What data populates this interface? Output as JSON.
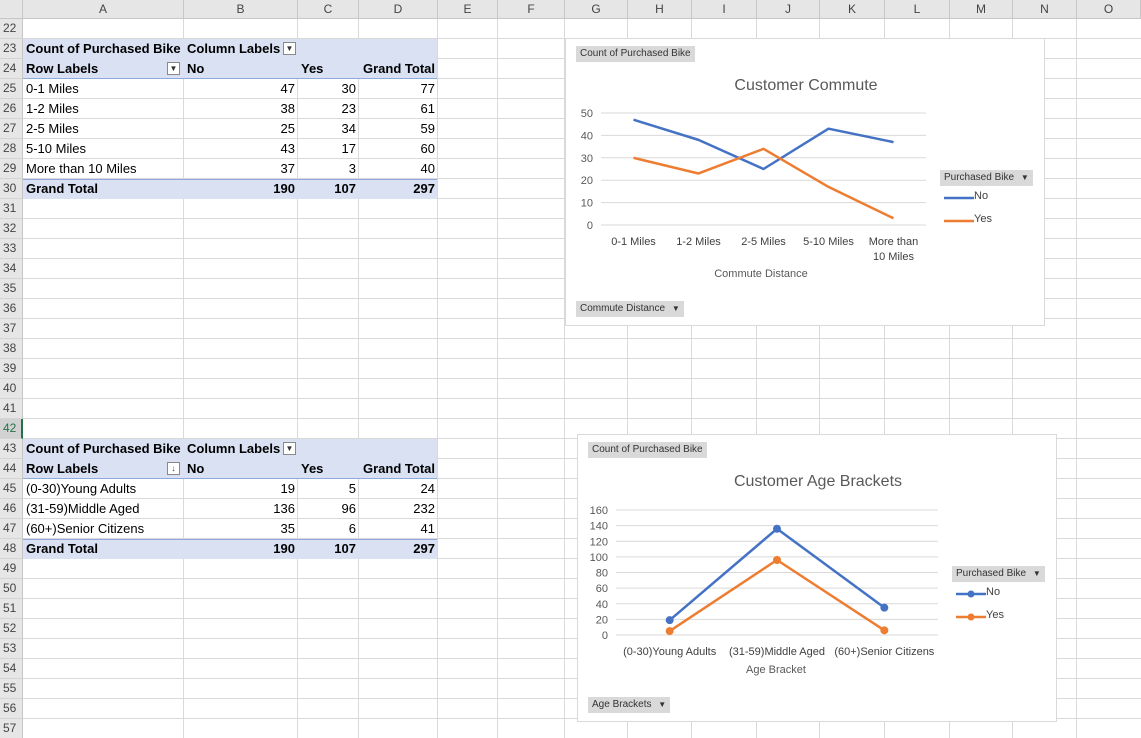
{
  "columns": [
    "A",
    "B",
    "C",
    "D",
    "E",
    "F",
    "G",
    "H",
    "I",
    "J",
    "K",
    "L",
    "M",
    "N",
    "O"
  ],
  "rows": [
    "22",
    "23",
    "24",
    "25",
    "26",
    "27",
    "28",
    "29",
    "30",
    "31",
    "32",
    "33",
    "34",
    "35",
    "36",
    "37",
    "38",
    "39",
    "40",
    "41",
    "42",
    "43",
    "44",
    "45",
    "46",
    "47",
    "48",
    "49",
    "50",
    "51",
    "52",
    "53",
    "54",
    "55",
    "56",
    "57"
  ],
  "active_row": "42",
  "pivot1": {
    "title": "Count of Purchased Bike",
    "col_labels": "Column Labels",
    "row_labels": "Row Labels",
    "headers": [
      "No",
      "Yes",
      "Grand Total"
    ],
    "rows": [
      {
        "label": "0-1 Miles",
        "no": "47",
        "yes": "30",
        "total": "77"
      },
      {
        "label": "1-2 Miles",
        "no": "38",
        "yes": "23",
        "total": "61"
      },
      {
        "label": "2-5 Miles",
        "no": "25",
        "yes": "34",
        "total": "59"
      },
      {
        "label": "5-10 Miles",
        "no": "43",
        "yes": "17",
        "total": "60"
      },
      {
        "label": "More than 10 Miles",
        "no": "37",
        "yes": "3",
        "total": "40"
      }
    ],
    "grand": {
      "label": "Grand Total",
      "no": "190",
      "yes": "107",
      "total": "297"
    }
  },
  "pivot2": {
    "title": "Count of Purchased Bike",
    "col_labels": "Column Labels",
    "row_labels": "Row Labels",
    "headers": [
      "No",
      "Yes",
      "Grand Total"
    ],
    "rows": [
      {
        "label": "(0-30)Young Adults",
        "no": "19",
        "yes": "5",
        "total": "24"
      },
      {
        "label": "(31-59)Middle Aged",
        "no": "136",
        "yes": "96",
        "total": "232"
      },
      {
        "label": "(60+)Senior Citizens",
        "no": "35",
        "yes": "6",
        "total": "41"
      }
    ],
    "grand": {
      "label": "Grand Total",
      "no": "190",
      "yes": "107",
      "total": "297"
    }
  },
  "chart1": {
    "value_button": "Count of Purchased Bike",
    "axis_button": "Commute Distance",
    "legend_button": "Purchased Bike",
    "legend": [
      "No",
      "Yes"
    ]
  },
  "chart2": {
    "value_button": "Count of Purchased Bike",
    "axis_button": "Age Brackets",
    "legend_button": "Purchased Bike",
    "legend": [
      "No",
      "Yes"
    ]
  },
  "colors": {
    "no": "#4472c4",
    "yes": "#ed7d31",
    "pivot_header": "#d9e1f2",
    "gridline": "#d9d9d9"
  },
  "chart_data": [
    {
      "type": "line",
      "title": "Customer Commute",
      "xlabel": "Commute Distance",
      "ylabel": "",
      "categories": [
        "0-1 Miles",
        "1-2 Miles",
        "2-5 Miles",
        "5-10 Miles",
        "More than 10 Miles"
      ],
      "series": [
        {
          "name": "No",
          "values": [
            47,
            38,
            25,
            43,
            37
          ]
        },
        {
          "name": "Yes",
          "values": [
            30,
            23,
            34,
            17,
            3
          ]
        }
      ],
      "ylim": [
        0,
        50
      ],
      "yticks": [
        "0",
        "10",
        "20",
        "30",
        "40",
        "50"
      ],
      "markers": false,
      "grid": true,
      "legend": "right"
    },
    {
      "type": "line",
      "title": "Customer Age Brackets",
      "xlabel": "Age Bracket",
      "ylabel": "",
      "categories": [
        "(0-30)Young Adults",
        "(31-59)Middle Aged",
        "(60+)Senior Citizens"
      ],
      "series": [
        {
          "name": "No",
          "values": [
            19,
            136,
            35
          ]
        },
        {
          "name": "Yes",
          "values": [
            5,
            96,
            6
          ]
        }
      ],
      "ylim": [
        0,
        160
      ],
      "yticks": [
        "0",
        "20",
        "40",
        "60",
        "80",
        "100",
        "120",
        "140",
        "160"
      ],
      "markers": true,
      "grid": true,
      "legend": "right"
    }
  ]
}
